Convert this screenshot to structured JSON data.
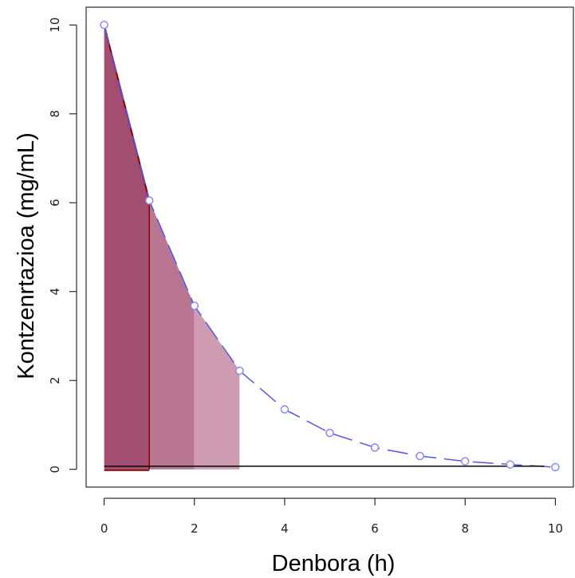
{
  "chart_data": {
    "type": "line",
    "xlabel": "Denbora (h)",
    "ylabel": "Kontzenrtazioa (mg/mL)",
    "xlim": [
      -0.4,
      10.4
    ],
    "ylim": [
      -0.4,
      10.4
    ],
    "x_ticks": [
      0,
      2,
      4,
      6,
      8,
      10
    ],
    "y_ticks": [
      0,
      2,
      4,
      6,
      8,
      10
    ],
    "x": [
      0,
      1,
      2,
      3,
      4,
      5,
      6,
      7,
      8,
      9,
      10
    ],
    "series": [
      {
        "values": [
          10.0,
          6.05,
          3.68,
          2.22,
          1.35,
          0.82,
          0.49,
          0.3,
          0.18,
          0.11,
          0.05
        ]
      }
    ],
    "baseline": {
      "y": 0.07,
      "x_from": 0,
      "x_to": 9.75
    },
    "trapezoids": [
      {
        "x0": 0,
        "x1": 1,
        "y0": 10.0,
        "y1": 6.05
      },
      {
        "x0": 1,
        "x1": 2,
        "y0": 6.05,
        "y1": 3.68
      },
      {
        "x0": 2,
        "x1": 3,
        "y0": 3.68,
        "y1": 2.22
      }
    ],
    "grid": false,
    "colors": {
      "line": "#5555ee",
      "marker": "#8888ff",
      "trapezoid_fills": [
        "#a34d70",
        "#b87691",
        "#cf9bb0"
      ],
      "edge": "#8b0000",
      "baseline": "#000000"
    }
  }
}
